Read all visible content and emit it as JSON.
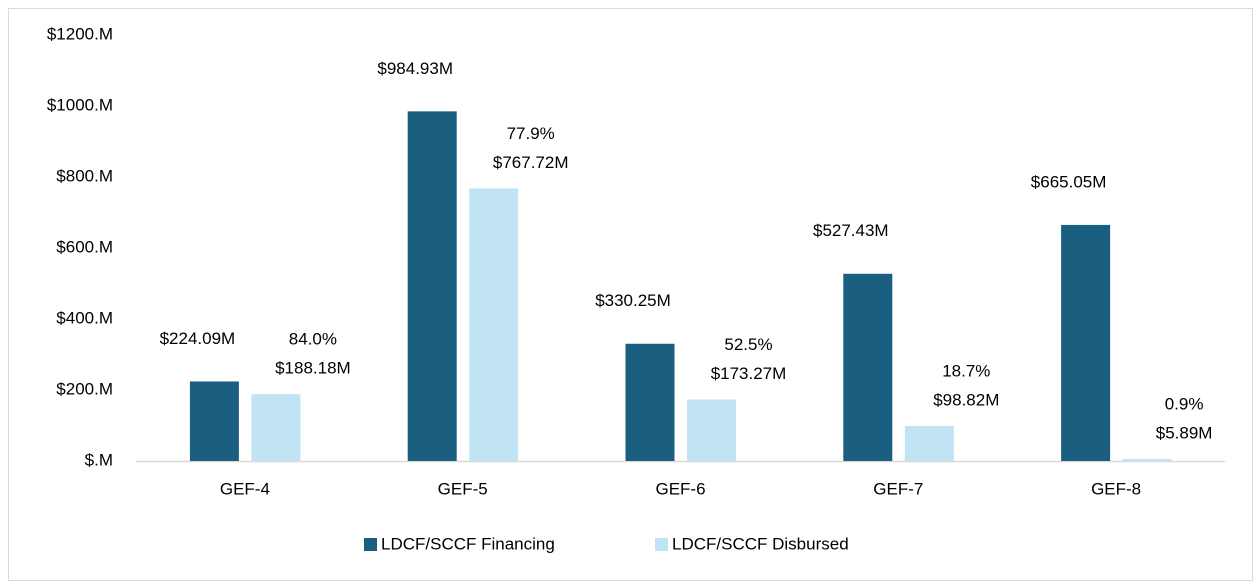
{
  "chart_data": {
    "type": "bar",
    "categories": [
      "GEF-4",
      "GEF-5",
      "GEF-6",
      "GEF-7",
      "GEF-8"
    ],
    "series": [
      {
        "name": "LDCF/SCCF Financing",
        "color": "#1a5f80",
        "values": [
          224.09,
          984.93,
          330.25,
          527.43,
          665.05
        ],
        "value_labels": [
          "$224.09M",
          "$984.93M",
          "$330.25M",
          "$527.43M",
          "$665.05M"
        ]
      },
      {
        "name": "LDCF/SCCF Disbursed",
        "color": "#c0e4f4",
        "values": [
          188.18,
          767.72,
          173.27,
          98.82,
          5.89
        ],
        "value_labels": [
          "$188.18M",
          "$767.72M",
          "$173.27M",
          "$98.82M",
          "$5.89M"
        ],
        "annotations": [
          "84.0%",
          "77.9%",
          "52.5%",
          "18.7%",
          "0.9%"
        ]
      }
    ],
    "ylim": [
      0,
      1200
    ],
    "yticks": [
      {
        "value": 0,
        "label": "$.M"
      },
      {
        "value": 200,
        "label": "$200.M"
      },
      {
        "value": 400,
        "label": "$400.M"
      },
      {
        "value": 600,
        "label": "$600.M"
      },
      {
        "value": 800,
        "label": "$800.M"
      },
      {
        "value": 1000,
        "label": "$1000.M"
      },
      {
        "value": 1200,
        "label": "$1200.M"
      }
    ],
    "grid": false,
    "legend": "bottom"
  }
}
